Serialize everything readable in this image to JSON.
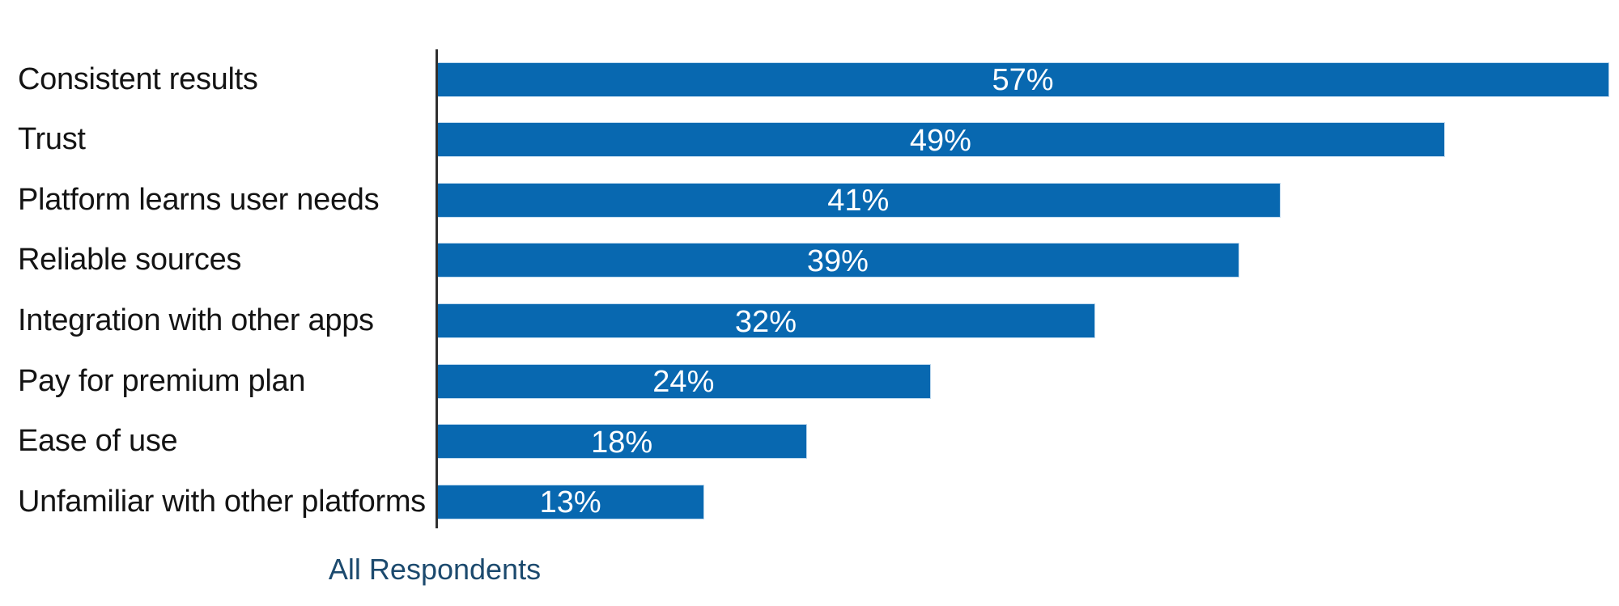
{
  "chart": {
    "series_label": "All Respondents",
    "colors": {
      "bar_fill": "#0868b0",
      "bar_edge": "#bcd8ee",
      "axis_line": "#2f2f2f",
      "category_text": "#141414",
      "value_text": "#ffffff",
      "series_label_text": "#1c4a6e",
      "background": "#ffffff"
    }
  },
  "chart_data": {
    "type": "bar",
    "orientation": "horizontal",
    "title": "",
    "categories": [
      "Consistent results",
      "Trust",
      "Platform learns user needs",
      "Reliable sources",
      "Integration with other apps",
      "Pay for premium plan",
      "Ease of use",
      "Unfamiliar with other platforms"
    ],
    "values": [
      57,
      49,
      41,
      39,
      32,
      24,
      18,
      13
    ],
    "value_labels": [
      "57%",
      "49%",
      "41%",
      "39%",
      "32%",
      "24%",
      "18%",
      "13%"
    ],
    "value_unit": "%",
    "xlim": [
      0,
      57
    ],
    "grid": false,
    "legend_position": "bottom",
    "legend": "All Respondents",
    "data_label_position": "inside-center",
    "xlabel": "",
    "ylabel": ""
  }
}
